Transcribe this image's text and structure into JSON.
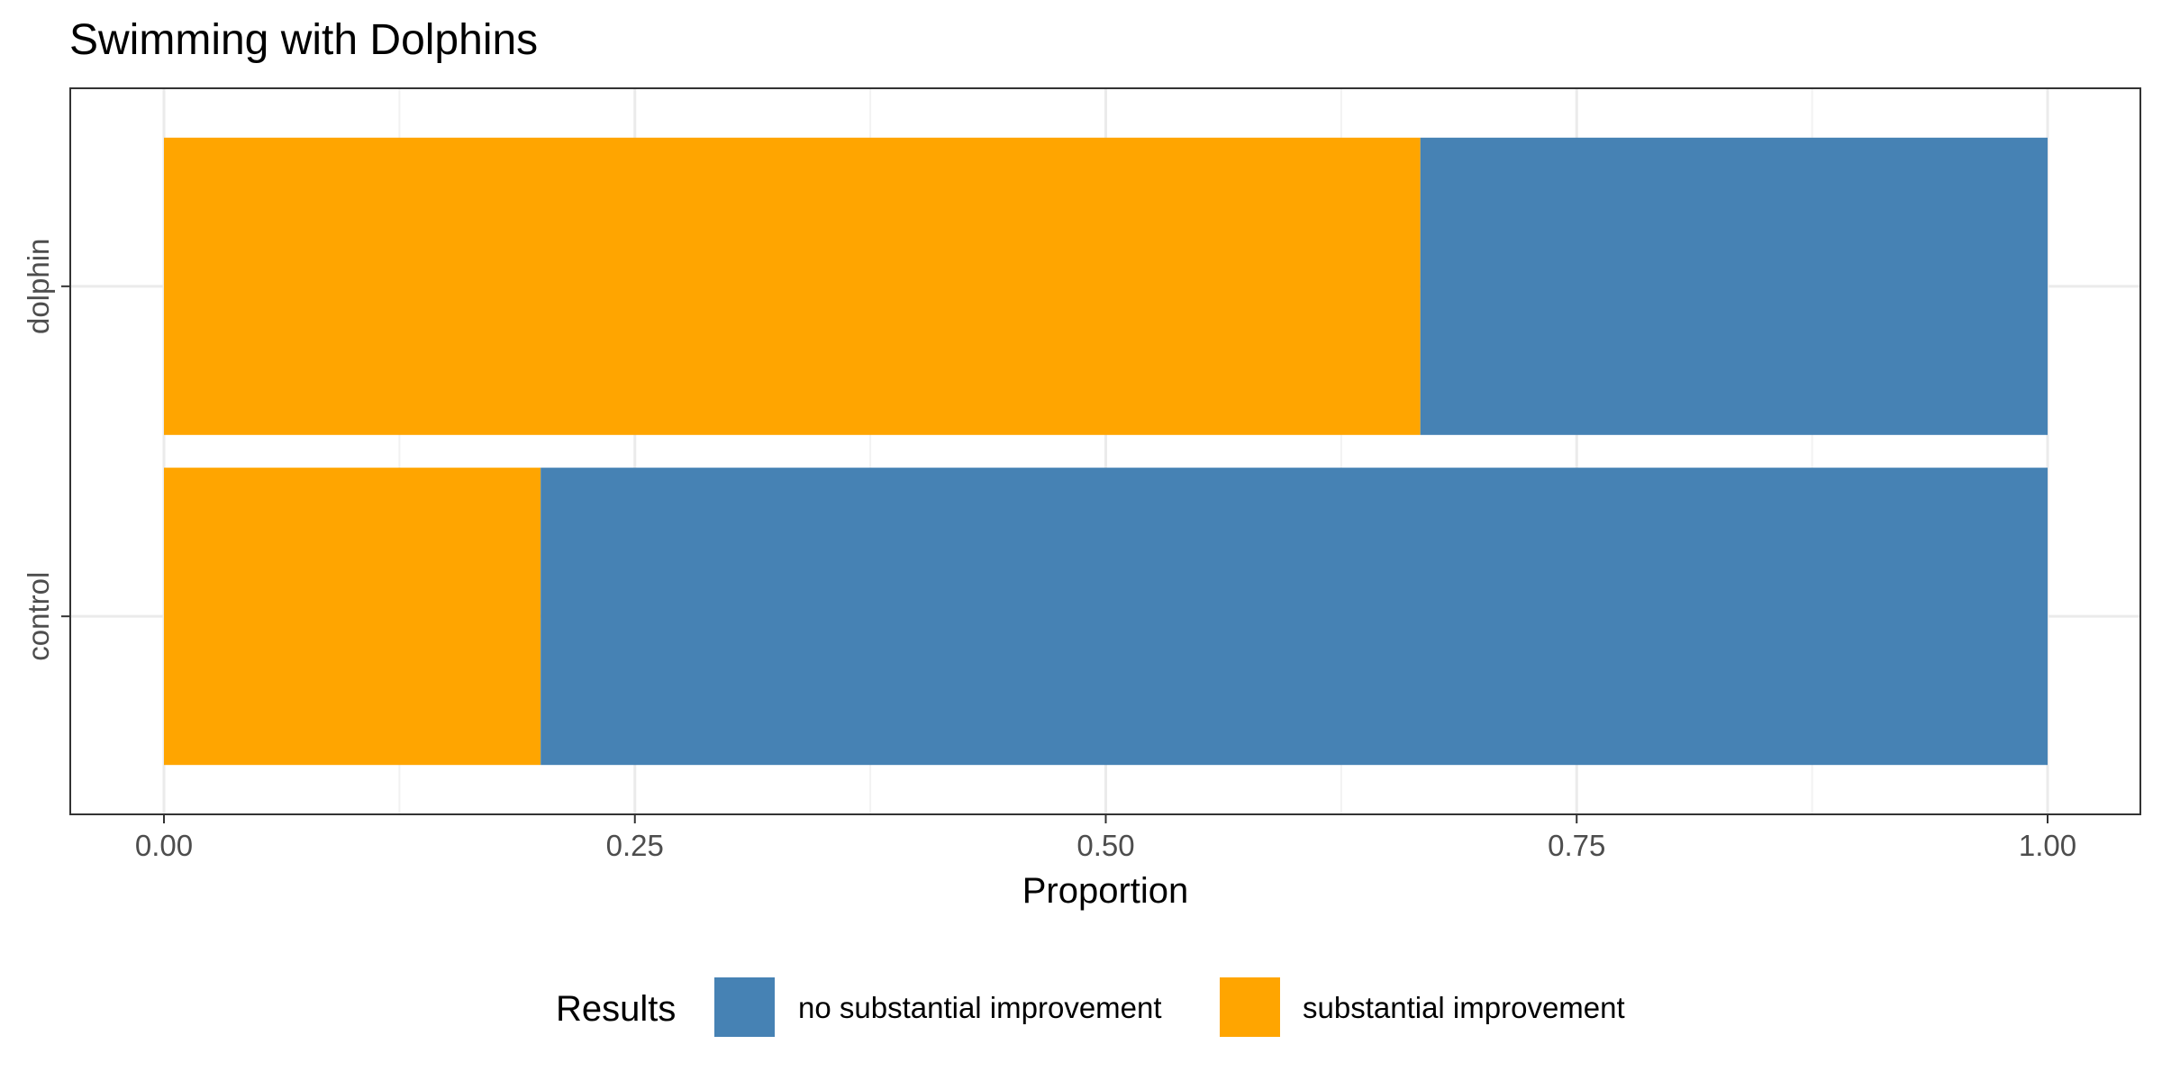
{
  "chart_data": {
    "type": "bar",
    "orientation": "horizontal",
    "stacked": true,
    "title": "Swimming with Dolphins",
    "xlabel": "Proportion",
    "ylabel": "",
    "xlim": [
      0,
      1
    ],
    "x_ticks": [
      "0.00",
      "0.25",
      "0.50",
      "0.75",
      "1.00"
    ],
    "categories": [
      "dolphin",
      "control"
    ],
    "series": [
      {
        "name": "substantial improvement",
        "color": "#FFA500",
        "values": [
          0.667,
          0.2
        ]
      },
      {
        "name": "no substantial improvement",
        "color": "#4682B4",
        "values": [
          0.333,
          0.8
        ]
      }
    ],
    "grid": true,
    "legend": {
      "title": "Results",
      "position": "bottom",
      "entries": [
        {
          "label": "no substantial improvement",
          "color": "#4682B4"
        },
        {
          "label": "substantial improvement",
          "color": "#FFA500"
        }
      ]
    }
  }
}
